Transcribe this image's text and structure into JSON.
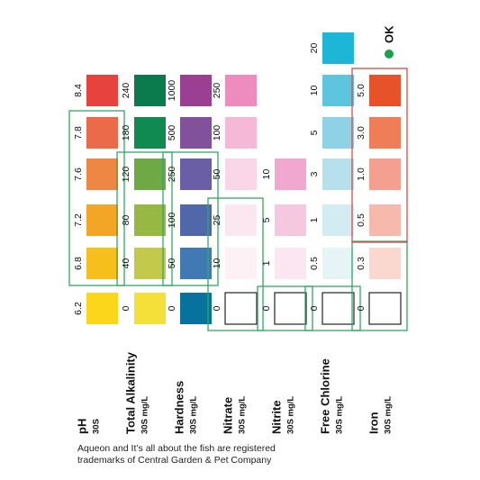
{
  "ok_label": "OK",
  "ok_color": "#1aa34a",
  "footer": {
    "line1": "Aqueon and It’s all about the fish are registered",
    "line2": "trademarks of Central Garden & Pet Company"
  },
  "columns": [
    {
      "id": "ph",
      "label": "pH",
      "unit": "30S",
      "pads": [
        {
          "value": "8.4",
          "color": "#e8423f"
        },
        {
          "value": "7.8",
          "color": "#eb6a4a"
        },
        {
          "value": "7.6",
          "color": "#ef8744"
        },
        {
          "value": "7.2",
          "color": "#f3a526"
        },
        {
          "value": "6.8",
          "color": "#f6bf1c"
        },
        {
          "value": "6.2",
          "color": "#fbd61a"
        }
      ],
      "ok_range": [
        "7.8",
        "6.8"
      ]
    },
    {
      "id": "total-alkalinity",
      "label": "Total Alkalinity",
      "unit": "30S  mg/L",
      "pads": [
        {
          "value": "240",
          "color": "#0b7a4c"
        },
        {
          "value": "180",
          "color": "#108a50"
        },
        {
          "value": "120",
          "color": "#6fa945"
        },
        {
          "value": "80",
          "color": "#97b843"
        },
        {
          "value": "40",
          "color": "#c3c94a"
        },
        {
          "value": "0",
          "color": "#f5e03a"
        }
      ],
      "ok_range": [
        "120",
        "40"
      ]
    },
    {
      "id": "hardness",
      "label": "Hardness",
      "unit": "30S  mg/L",
      "pads": [
        {
          "value": "1000",
          "color": "#9b3f92"
        },
        {
          "value": "500",
          "color": "#82519c"
        },
        {
          "value": "250",
          "color": "#6a5fa6"
        },
        {
          "value": "100",
          "color": "#5068aa"
        },
        {
          "value": "50",
          "color": "#4179b4"
        },
        {
          "value": "0",
          "color": "#08729e"
        }
      ],
      "ok_range": [
        "250",
        "50"
      ]
    },
    {
      "id": "nitrate",
      "label": "Nitrate",
      "unit": "30S  mg/L",
      "pads": [
        {
          "value": "250",
          "color": "#ee8cbd"
        },
        {
          "value": "100",
          "color": "#f5b8d6"
        },
        {
          "value": "50",
          "color": "#f9d7e8"
        },
        {
          "value": "25",
          "color": "#fbe7f0"
        },
        {
          "value": "10",
          "color": "#fdf1f6"
        },
        {
          "value": "0",
          "color": "#ffffff"
        }
      ],
      "ok_range": [
        "25",
        "0"
      ]
    },
    {
      "id": "nitrite",
      "label": "Nitrite",
      "unit": "30S  mg/L",
      "pads": [
        {
          "value": "10",
          "color": "#f0a8d0"
        },
        {
          "value": "5",
          "color": "#f6c8e0"
        },
        {
          "value": "1",
          "color": "#fbe6f2"
        },
        {
          "value": "0",
          "color": "#ffffff"
        }
      ],
      "ok_range": [
        "0",
        "0"
      ]
    },
    {
      "id": "free-chlorine",
      "label": "Free Chlorine",
      "unit": "30S  mg/L",
      "pads": [
        {
          "value": "20",
          "color": "#1eb6d6"
        },
        {
          "value": "10",
          "color": "#5ec5df"
        },
        {
          "value": "5",
          "color": "#8fd2e5"
        },
        {
          "value": "3",
          "color": "#b6e0ec"
        },
        {
          "value": "1",
          "color": "#d3ecf2"
        },
        {
          "value": "0.5",
          "color": "#e6f4f6"
        },
        {
          "value": "0",
          "color": "#ffffff"
        }
      ],
      "ok_range": [
        "0",
        "0"
      ]
    },
    {
      "id": "iron",
      "label": "Iron",
      "unit": "30S  mg/L",
      "pads": [
        {
          "value": "5.0",
          "color": "#e8522a"
        },
        {
          "value": "3.0",
          "color": "#ee7d58"
        },
        {
          "value": "1.0",
          "color": "#f3a090"
        },
        {
          "value": "0.5",
          "color": "#f6b9ab"
        },
        {
          "value": "0.3",
          "color": "#fad8cf"
        },
        {
          "value": "0",
          "color": "#ffffff"
        }
      ],
      "ok_range": [
        "0.3",
        "0"
      ],
      "danger_range": [
        "5.0",
        "0.5"
      ]
    }
  ]
}
